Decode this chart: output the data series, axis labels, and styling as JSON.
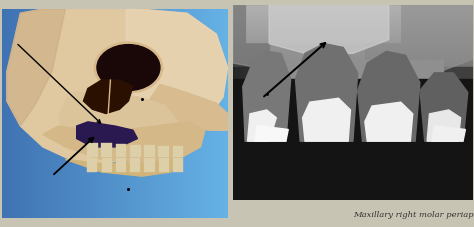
{
  "figsize": [
    4.74,
    2.27
  ],
  "dpi": 100,
  "overall_bg": "#c8c4b4",
  "caption": "Maxillary right molar periapical",
  "caption_color": "#333333",
  "caption_fontsize": 6.0,
  "left_bg": "#5599cc",
  "skull_base": "#e8d0b0",
  "skull_shadow": "#c8a880",
  "eye_dark": "#1a0800",
  "nose_dark": "#2a1000",
  "purple_shadow": "#2a1850",
  "teeth_color": "#e0d4b0",
  "xray_bg": "#303030",
  "xray_dark": "#101010",
  "xray_mid": "#505050",
  "xray_light": "#909090",
  "xray_bright": "#e0e0e0",
  "xray_white": "#f8f8f8"
}
